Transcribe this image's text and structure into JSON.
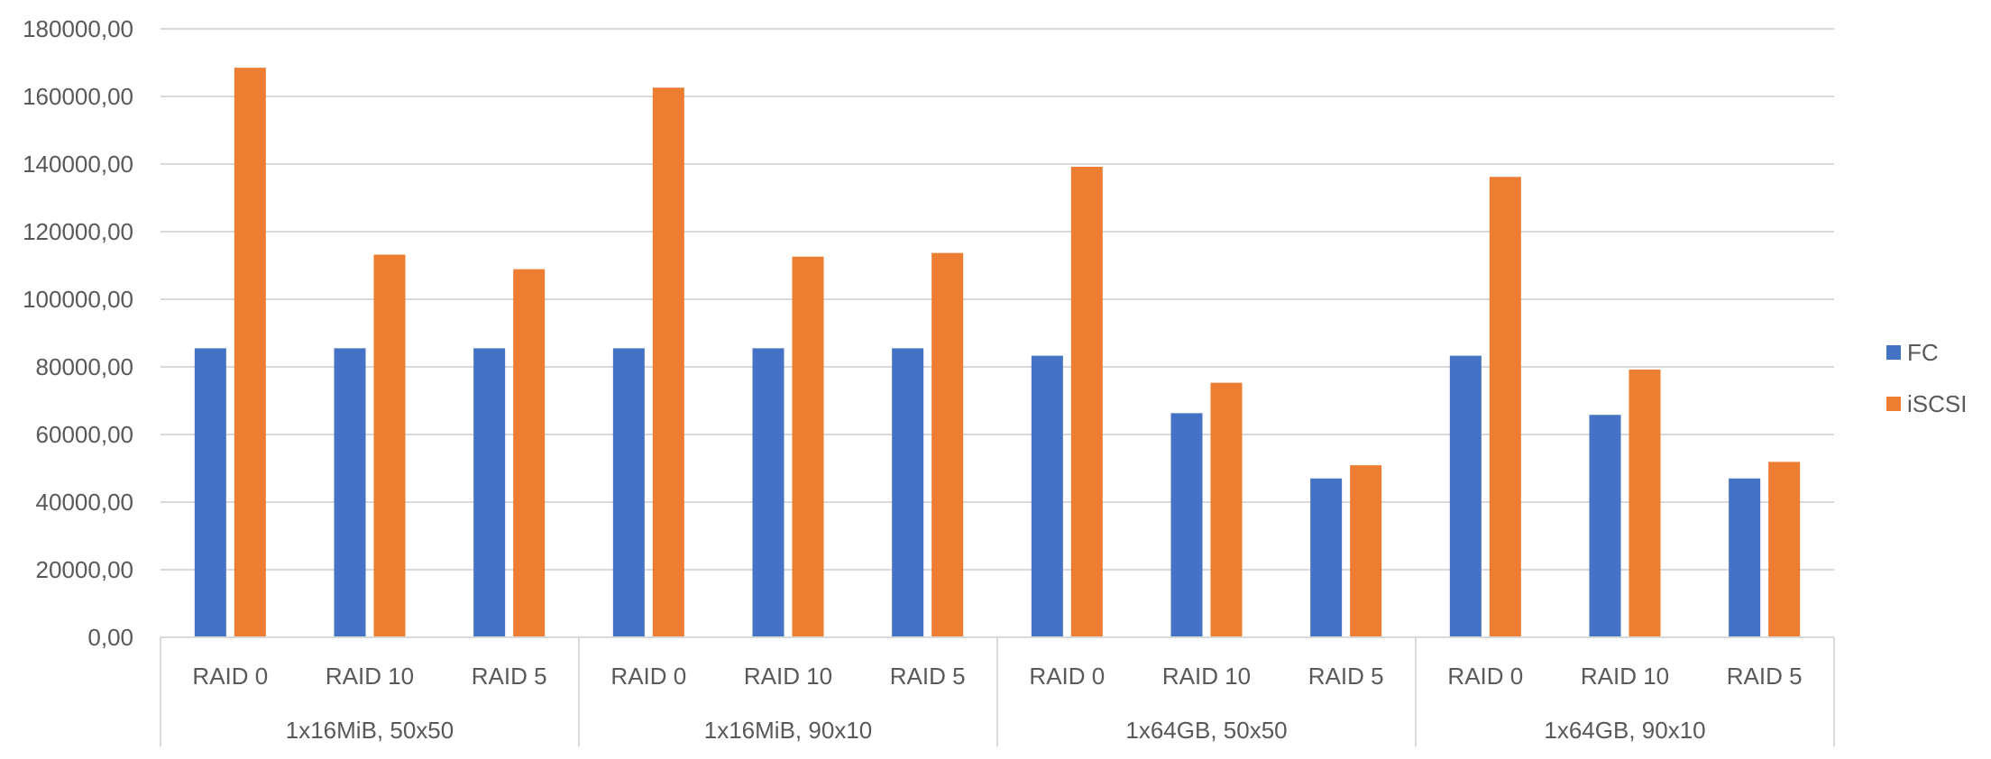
{
  "chart_data": {
    "type": "bar",
    "title": "",
    "xlabel": "",
    "ylabel": "",
    "ylim": [
      0,
      180000
    ],
    "yticks": [
      "0,00",
      "20000,00",
      "40000,00",
      "60000,00",
      "80000,00",
      "100000,00",
      "120000,00",
      "140000,00",
      "160000,00",
      "180000,00"
    ],
    "groups": [
      {
        "label": "1x16MiB, 50x50",
        "categories": [
          "RAID 0",
          "RAID 10",
          "RAID 5"
        ]
      },
      {
        "label": "1x16MiB, 90x10",
        "categories": [
          "RAID 0",
          "RAID 10",
          "RAID 5"
        ]
      },
      {
        "label": "1x64GB, 50x50",
        "categories": [
          "RAID 0",
          "RAID 10",
          "RAID 5"
        ]
      },
      {
        "label": "1x64GB, 90x10",
        "categories": [
          "RAID 0",
          "RAID 10",
          "RAID 5"
        ]
      }
    ],
    "series": [
      {
        "name": "FC",
        "color": "#4472C4",
        "values": [
          85500,
          85500,
          85500,
          85500,
          85500,
          85500,
          83300,
          66300,
          47000,
          83300,
          65800,
          47000
        ]
      },
      {
        "name": "iSCSI",
        "color": "#ED7D31",
        "values": [
          168500,
          113200,
          108900,
          162600,
          112600,
          113700,
          139200,
          75300,
          50900,
          136200,
          79200,
          51900
        ]
      }
    ],
    "legend_position": "right",
    "grid": true
  }
}
